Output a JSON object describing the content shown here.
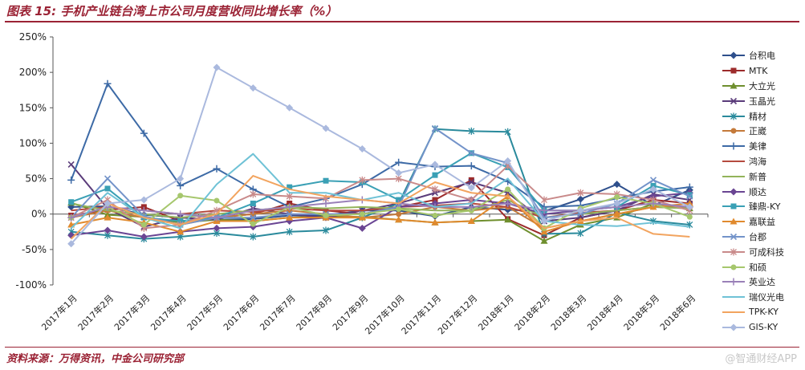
{
  "title": "图表 15:  手机产业链台湾上市公司月度营收同比增长率（%）",
  "source": "资料来源：万得资讯，中金公司研究部",
  "watermark": "@智通财经APP",
  "chart_data": {
    "type": "line",
    "title": "图表 15:  手机产业链台湾上市公司月度营收同比增长率（%）",
    "xlabel": "",
    "ylabel": "",
    "ylim": [
      -100,
      250
    ],
    "yticks": [
      "250%",
      "200%",
      "150%",
      "100%",
      "50%",
      "0%",
      "-50%",
      "-100%"
    ],
    "yticks_values": [
      250,
      200,
      150,
      100,
      50,
      0,
      -50,
      -100
    ],
    "grid": false,
    "legend_position": "right",
    "categories": [
      "2017年1月",
      "2017年2月",
      "2017年3月",
      "2017年4月",
      "2017年5月",
      "2017年6月",
      "2017年7月",
      "2017年8月",
      "2017年9月",
      "2017年10月",
      "2017年11月",
      "2017年12月",
      "2018年1月",
      "2018年2月",
      "2018年3月",
      "2018年4月",
      "2018年5月",
      "2018年6月"
    ],
    "series": [
      {
        "name": "台积电",
        "color": "#2e4f8c",
        "marker": "diamond",
        "values": [
          10,
          11,
          -1,
          -5,
          -8,
          -7,
          -2,
          -2,
          5,
          5,
          -3,
          10,
          6,
          4,
          21,
          42,
          12,
          34
        ]
      },
      {
        "name": "MTK",
        "color": "#9c2b2b",
        "marker": "square",
        "values": [
          -2,
          6,
          10,
          -10,
          -5,
          0,
          15,
          5,
          0,
          10,
          20,
          48,
          -7,
          -30,
          -5,
          5,
          20,
          15
        ]
      },
      {
        "name": "大立光",
        "color": "#6f8f2e",
        "marker": "triangle",
        "values": [
          16,
          -1,
          -4,
          -12,
          -8,
          -10,
          -5,
          -3,
          -4,
          -8,
          -12,
          -10,
          -8,
          -38,
          -15,
          -5,
          15,
          8
        ]
      },
      {
        "name": "玉晶光",
        "color": "#5a3b7a",
        "marker": "x",
        "values": [
          70,
          8,
          -18,
          -5,
          -8,
          8,
          0,
          -5,
          5,
          15,
          30,
          45,
          30,
          -10,
          -5,
          5,
          28,
          20
        ]
      },
      {
        "name": "精材",
        "color": "#2a8a9c",
        "marker": "star",
        "values": [
          -25,
          -30,
          -35,
          -32,
          -27,
          -32,
          -25,
          -23,
          -5,
          15,
          120,
          117,
          116,
          -28,
          -27,
          2,
          -10,
          -15
        ]
      },
      {
        "name": "正崴",
        "color": "#c47a3a",
        "marker": "circle",
        "values": [
          -5,
          5,
          -5,
          -15,
          -5,
          0,
          5,
          0,
          -5,
          0,
          10,
          5,
          10,
          -20,
          -10,
          0,
          10,
          10
        ]
      },
      {
        "name": "美律",
        "color": "#3d6aa6",
        "marker": "plus",
        "values": [
          48,
          184,
          114,
          40,
          64,
          35,
          10,
          22,
          42,
          73,
          67,
          68,
          46,
          10,
          12,
          22,
          32,
          38
        ]
      },
      {
        "name": "鸿海",
        "color": "#b54a3f",
        "marker": "none",
        "values": [
          5,
          10,
          5,
          0,
          5,
          3,
          8,
          5,
          5,
          10,
          12,
          15,
          10,
          -5,
          2,
          5,
          10,
          8
        ]
      },
      {
        "name": "新普",
        "color": "#93b35a",
        "marker": "none",
        "values": [
          15,
          5,
          0,
          -5,
          0,
          5,
          10,
          8,
          10,
          8,
          5,
          5,
          20,
          -5,
          0,
          5,
          10,
          8
        ]
      },
      {
        "name": "顺达",
        "color": "#6a4593",
        "marker": "diamond",
        "values": [
          -30,
          -23,
          -32,
          -25,
          -20,
          -18,
          -10,
          -5,
          -20,
          10,
          15,
          20,
          15,
          0,
          5,
          10,
          25,
          30
        ]
      },
      {
        "name": "臻鼎-KY",
        "color": "#3aa0b5",
        "marker": "square",
        "values": [
          17,
          36,
          -5,
          -10,
          -5,
          15,
          38,
          47,
          45,
          20,
          55,
          86,
          66,
          5,
          5,
          10,
          40,
          27
        ]
      },
      {
        "name": "嘉联益",
        "color": "#e08a2e",
        "marker": "triangle",
        "values": [
          -15,
          -5,
          -12,
          -25,
          -10,
          -10,
          -5,
          -5,
          -5,
          -8,
          -12,
          -10,
          25,
          -25,
          -10,
          0,
          10,
          15
        ]
      },
      {
        "name": "台郡",
        "color": "#7393c9",
        "marker": "x",
        "values": [
          -5,
          50,
          -3,
          -15,
          -5,
          -5,
          0,
          0,
          0,
          10,
          121,
          86,
          72,
          -5,
          0,
          15,
          48,
          25
        ]
      },
      {
        "name": "可成科技",
        "color": "#c98a8a",
        "marker": "star",
        "values": [
          -5,
          20,
          -20,
          -15,
          5,
          28,
          25,
          22,
          48,
          50,
          35,
          20,
          68,
          20,
          30,
          28,
          20,
          5
        ]
      },
      {
        "name": "和硕",
        "color": "#a6c76d",
        "marker": "circle",
        "values": [
          -5,
          10,
          -15,
          26,
          19,
          -14,
          10,
          -2,
          0,
          7,
          -2,
          5,
          35,
          -20,
          8,
          24,
          15,
          -4
        ]
      },
      {
        "name": "英业达",
        "color": "#9a80b8",
        "marker": "plus",
        "values": [
          -5,
          10,
          5,
          0,
          -5,
          5,
          10,
          15,
          20,
          15,
          10,
          10,
          15,
          5,
          5,
          10,
          15,
          10
        ]
      },
      {
        "name": "瑞仪光电",
        "color": "#6fc2d6",
        "marker": "none",
        "values": [
          -20,
          30,
          -5,
          -20,
          42,
          85,
          30,
          30,
          20,
          30,
          10,
          15,
          50,
          -10,
          -15,
          -17,
          -12,
          -18
        ]
      },
      {
        "name": "TPK-KY",
        "color": "#f2a45f",
        "marker": "none",
        "values": [
          -35,
          15,
          -5,
          -15,
          0,
          54,
          35,
          25,
          20,
          15,
          45,
          30,
          25,
          -20,
          -10,
          -5,
          -28,
          -32
        ]
      },
      {
        "name": "GIS-KY",
        "color": "#aab9de",
        "marker": "diamond",
        "values": [
          -42,
          15,
          20,
          50,
          207,
          178,
          150,
          121,
          92,
          58,
          70,
          37,
          75,
          -10,
          5,
          15,
          35,
          10
        ]
      }
    ]
  }
}
